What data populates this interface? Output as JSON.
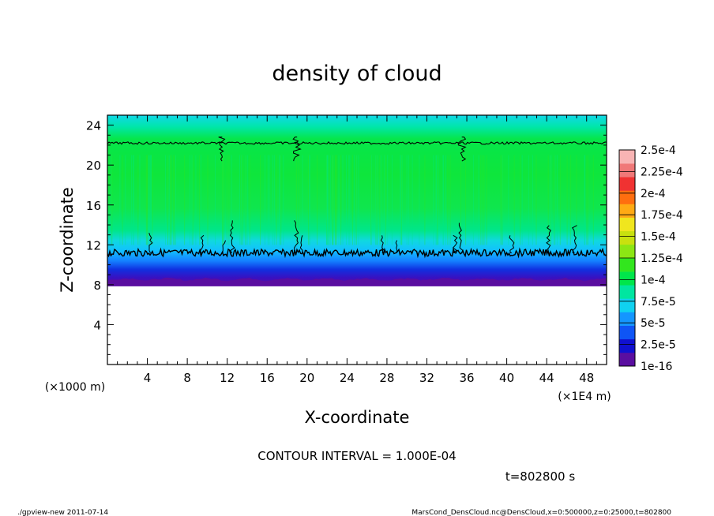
{
  "chart_data": {
    "type": "heatmap",
    "title": "density of cloud",
    "xlabel": "X-coordinate",
    "ylabel": "Z-coordinate",
    "x_unit_note": "(×1E4 m)",
    "y_unit_note": "(×1000 m)",
    "xlim": [
      0,
      50
    ],
    "ylim": [
      0,
      25
    ],
    "x_ticks": [
      4,
      8,
      12,
      16,
      20,
      24,
      28,
      32,
      36,
      40,
      44,
      48
    ],
    "y_ticks": [
      4,
      8,
      12,
      16,
      20,
      24
    ],
    "contour_interval_text": "CONTOUR INTERVAL = 1.000E-04",
    "time_text": "t=802800 s",
    "cloud_layer": {
      "z_bottom": 8,
      "z_top": 25,
      "lower_contour_z": 11.2,
      "upper_contour_z": 22.2
    },
    "colorbar": {
      "labels": [
        "2.5e-4",
        "2.25e-4",
        "2e-4",
        "1.75e-4",
        "1.5e-4",
        "1.25e-4",
        "1e-4",
        "7.5e-5",
        "5e-5",
        "2.5e-5",
        "1e-16"
      ],
      "colors": [
        "#5a0ea0",
        "#1010d0",
        "#0f55f5",
        "#1496ff",
        "#10d2f0",
        "#00e6a0",
        "#00e64b",
        "#32e61e",
        "#8ce614",
        "#c8e10f",
        "#f0e61e",
        "#ffaa14",
        "#ff6e0f",
        "#f03232",
        "#f07878",
        "#f8b4b4"
      ]
    }
  },
  "footer": {
    "left": "./gpview-new   2011-07-14",
    "right": "MarsCond_DensCloud.nc@DensCloud,x=0:500000,z=0:25000,t=802800"
  }
}
